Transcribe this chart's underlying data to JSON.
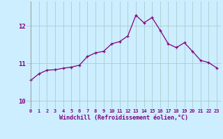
{
  "x": [
    0,
    1,
    2,
    3,
    4,
    5,
    6,
    7,
    8,
    9,
    10,
    11,
    12,
    13,
    14,
    15,
    16,
    17,
    18,
    19,
    20,
    21,
    22,
    23
  ],
  "y": [
    10.55,
    10.72,
    10.82,
    10.83,
    10.87,
    10.9,
    10.95,
    11.18,
    11.28,
    11.32,
    11.52,
    11.58,
    11.73,
    12.28,
    12.08,
    12.22,
    11.88,
    11.52,
    11.42,
    11.55,
    11.32,
    11.08,
    11.02,
    10.88
  ],
  "line_color": "#800080",
  "marker": "+",
  "bg_color": "#cceeff",
  "grid_color": "#aacccc",
  "xlabel": "Windchill (Refroidissement éolien,°C)",
  "ylim": [
    9.8,
    12.65
  ],
  "xlim": [
    -0.5,
    23.5
  ],
  "yticks": [
    10,
    11,
    12
  ],
  "xtick_labels": [
    "0",
    "1",
    "2",
    "3",
    "4",
    "5",
    "6",
    "7",
    "8",
    "9",
    "10",
    "11",
    "12",
    "13",
    "14",
    "15",
    "16",
    "17",
    "18",
    "19",
    "20",
    "21",
    "22",
    "23"
  ],
  "line_color_hex": "#800080",
  "tick_color": "#800080",
  "xlabel_color": "#800080"
}
